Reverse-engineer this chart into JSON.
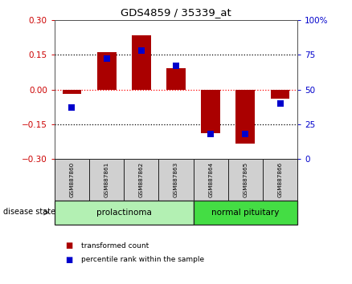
{
  "title": "GDS4859 / 35339_at",
  "samples": [
    "GSM887860",
    "GSM887861",
    "GSM887862",
    "GSM887863",
    "GSM887864",
    "GSM887865",
    "GSM887866"
  ],
  "transformed_count": [
    -0.02,
    0.16,
    0.235,
    0.09,
    -0.19,
    -0.235,
    -0.04
  ],
  "percentile_rank": [
    37,
    72,
    78,
    67,
    18,
    18,
    40
  ],
  "ylim_left": [
    -0.3,
    0.3
  ],
  "ylim_right": [
    0,
    100
  ],
  "yticks_left": [
    -0.3,
    -0.15,
    0,
    0.15,
    0.3
  ],
  "yticks_right": [
    0,
    25,
    50,
    75,
    100
  ],
  "bar_color": "#aa0000",
  "dot_color": "#0000cc",
  "left_tick_color": "#cc0000",
  "right_tick_color": "#0000cc",
  "groups": [
    {
      "label": "prolactinoma",
      "indices": [
        0,
        1,
        2,
        3
      ],
      "color": "#b3f0b3",
      "edge_color": "#222222"
    },
    {
      "label": "normal pituitary",
      "indices": [
        4,
        5,
        6
      ],
      "color": "#44dd44",
      "edge_color": "#222222"
    }
  ],
  "disease_state_label": "disease state",
  "legend_items": [
    {
      "label": "transformed count",
      "color": "#aa0000"
    },
    {
      "label": "percentile rank within the sample",
      "color": "#0000cc"
    }
  ],
  "bar_width": 0.55,
  "dot_size": 28,
  "background_color": "#ffffff",
  "label_box_color": "#d0d0d0",
  "label_box_edge": "#222222"
}
